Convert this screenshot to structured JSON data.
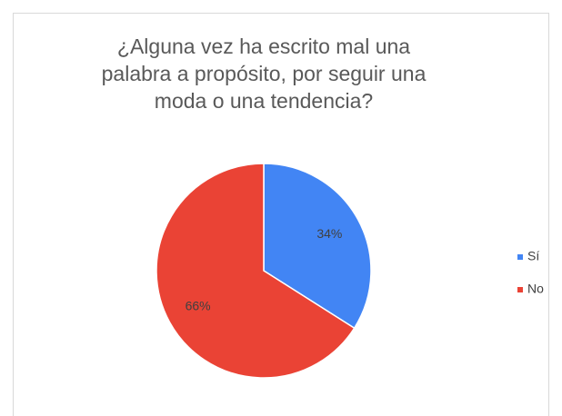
{
  "chart_data": {
    "type": "pie",
    "title": "¿Alguna vez ha escrito mal una palabra a propósito, por seguir una moda o una tendencia?",
    "categories": [
      "Sí",
      "No"
    ],
    "values": [
      34,
      66
    ],
    "value_labels": [
      "34%",
      "66%"
    ],
    "colors": [
      "#4285f4",
      "#ea4335"
    ],
    "legend": "right"
  }
}
